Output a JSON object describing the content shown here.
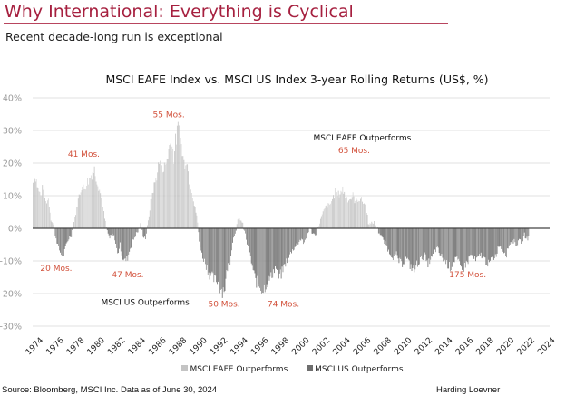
{
  "header": {
    "title": "Why International: Everything is Cyclical",
    "subtitle": "Recent decade-long run is exceptional"
  },
  "colors": {
    "title": "#a6203f",
    "rule": "#b8455e",
    "eafe_bar": "#c4c4c4",
    "us_bar": "#6e6e6e",
    "annotation": "#d2503a",
    "grid": "#e6e6e6"
  },
  "chart_data": {
    "type": "bar",
    "title": "MSCI EAFE Index vs. MSCI US Index 3-year Rolling Returns (US$, %)",
    "xlabel": "",
    "ylabel": "",
    "ylim": [
      -30,
      40
    ],
    "yticks": [
      40,
      30,
      20,
      10,
      0,
      -10,
      -20,
      -30
    ],
    "ytick_labels": [
      "40%",
      "30%",
      "20%",
      "10%",
      "0%",
      "-10%",
      "-20%",
      "-30%"
    ],
    "xticks": [
      "1974",
      "1976",
      "1978",
      "1980",
      "1982",
      "1984",
      "1986",
      "1988",
      "1990",
      "1992",
      "1994",
      "1996",
      "1998",
      "2000",
      "2002",
      "2004",
      "2006",
      "2008",
      "2010",
      "2012",
      "2014",
      "2016",
      "2018",
      "2020",
      "2022",
      "2024"
    ],
    "x_start": 1974.0,
    "x_end": 2024.5,
    "frequency": "quarterly",
    "grid": true,
    "legend_position": "bottom",
    "series": [
      {
        "name": "MSCI EAFE Outperforms",
        "rule": "value > 0"
      },
      {
        "name": "MSCI US Outperforms",
        "rule": "value < 0"
      }
    ],
    "values": [
      14,
      16,
      12,
      10,
      13,
      8,
      9,
      3,
      1,
      -3,
      -6,
      -8,
      -8,
      -5,
      -3,
      -2,
      2,
      6,
      10,
      13,
      12,
      14,
      15,
      17,
      18,
      15,
      12,
      8,
      3,
      -1,
      -3,
      -2,
      -3,
      -8,
      -5,
      -9,
      -10,
      -9,
      -6,
      -4,
      -2,
      -1,
      1,
      -2,
      -3,
      2,
      8,
      12,
      15,
      19,
      22,
      18,
      20,
      24,
      27,
      22,
      28,
      31,
      25,
      20,
      22,
      15,
      12,
      7,
      4,
      -4,
      -8,
      -10,
      -12,
      -14,
      -15,
      -16,
      -16,
      -18,
      -19,
      -18,
      -12,
      -10,
      -4,
      -1,
      2,
      3,
      1,
      -2,
      -6,
      -9,
      -13,
      -16,
      -17,
      -18,
      -19,
      -17,
      -16,
      -15,
      -13,
      -12,
      -15,
      -14,
      -12,
      -10,
      -9,
      -7,
      -6,
      -5,
      -4,
      -3,
      -5,
      -2,
      0,
      -1,
      -2,
      -1,
      2,
      4,
      6,
      7,
      7,
      9,
      11,
      10,
      11,
      12,
      10,
      9,
      9,
      10,
      8,
      9,
      9,
      8,
      7,
      2,
      1,
      2,
      1,
      -1,
      -2,
      -4,
      -5,
      -7,
      -8,
      -9,
      -8,
      -10,
      -11,
      -10,
      -9,
      -11,
      -12,
      -13,
      -11,
      -10,
      -9,
      -8,
      -11,
      -10,
      -9,
      -7,
      -6,
      -8,
      -9,
      -10,
      -11,
      -12,
      -11,
      -9,
      -10,
      -12,
      -13,
      -11,
      -10,
      -8,
      -9,
      -10,
      -9,
      -8,
      -9,
      -10,
      -11,
      -10,
      -9,
      -8,
      -5,
      -6,
      -7,
      -8,
      -5,
      -4,
      -4,
      -5,
      -4,
      -4,
      -2,
      -3
    ],
    "annotations": [
      {
        "text": "41 Mos.",
        "x": 1979.0,
        "y": 22,
        "style": "period"
      },
      {
        "text": "55 Mos.",
        "x": 1987.3,
        "y": 34,
        "style": "period"
      },
      {
        "text": "65 Mos.",
        "x": 2005.4,
        "y": 23,
        "style": "period"
      },
      {
        "text": "20 Mos.",
        "x": 1976.3,
        "y": -13,
        "style": "period"
      },
      {
        "text": "47 Mos.",
        "x": 1983.3,
        "y": -15,
        "style": "period"
      },
      {
        "text": "50 Mos.",
        "x": 1992.7,
        "y": -24,
        "style": "period"
      },
      {
        "text": "74 Mos.",
        "x": 1998.5,
        "y": -24,
        "style": "period"
      },
      {
        "text": "175 Mos.",
        "x": 2016.5,
        "y": -15,
        "style": "period"
      },
      {
        "text": "MSCI EAFE Outperforms",
        "x": 2006.2,
        "y": 27,
        "style": "label"
      },
      {
        "text": "MSCI US Outperforms",
        "x": 1985.0,
        "y": -23.5,
        "style": "label"
      }
    ]
  },
  "legend": {
    "items": [
      {
        "label": "MSCI EAFE Outperforms",
        "color": "#c4c4c4"
      },
      {
        "label": "MSCI US Outperforms",
        "color": "#6e6e6e"
      }
    ]
  },
  "footer": {
    "source": "Source: Bloomberg, MSCI Inc. Data as of June 30, 2024",
    "brand": "Harding Loevner"
  }
}
